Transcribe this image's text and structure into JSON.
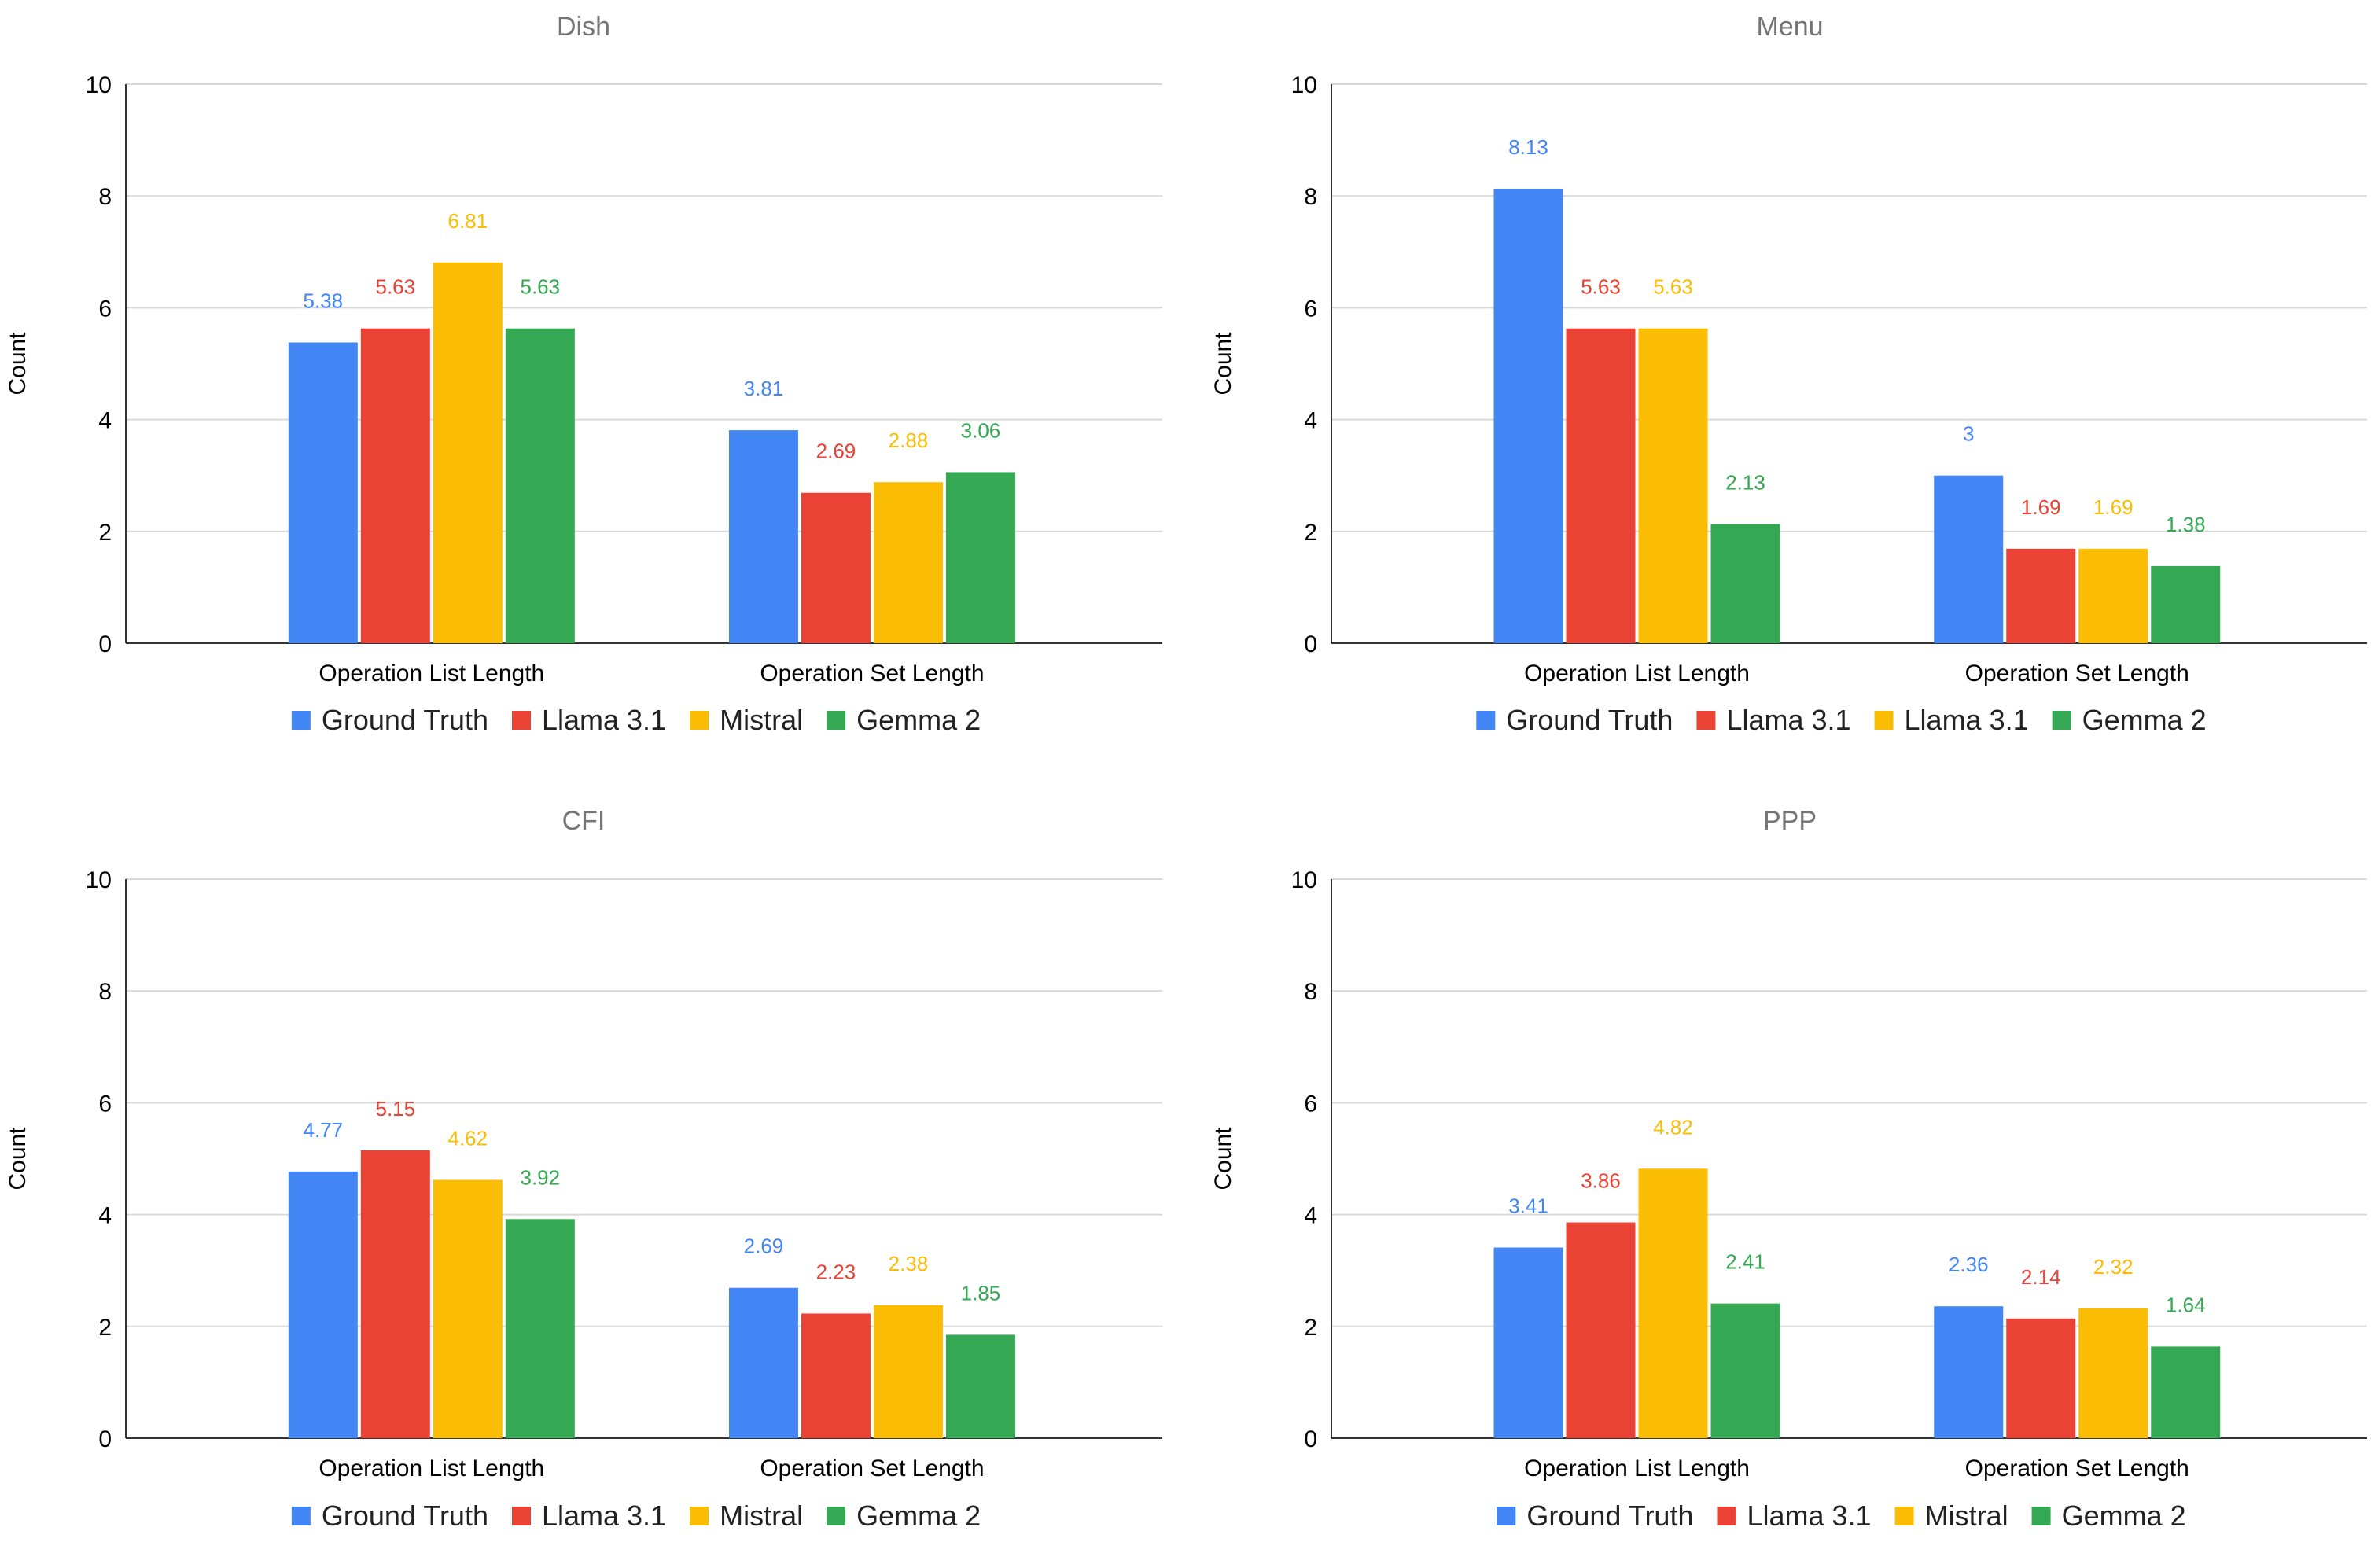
{
  "colors": [
    "#4285f4",
    "#ea4335",
    "#fbbc04",
    "#34a853"
  ],
  "chart_data": [
    {
      "type": "bar",
      "title": "Dish",
      "categories": [
        "Operation List Length",
        "Operation Set Length"
      ],
      "ylabel": "Count",
      "xlabel": "",
      "ylim": [
        0,
        10
      ],
      "yticks": [
        0,
        2,
        4,
        6,
        8,
        10
      ],
      "grid": true,
      "legend": "bottom",
      "series": [
        {
          "name": "Ground Truth",
          "values": [
            5.38,
            3.81
          ],
          "labels": [
            "5.38",
            "3.81"
          ]
        },
        {
          "name": "Llama 3.1",
          "values": [
            5.63,
            2.69
          ],
          "labels": [
            "5.63",
            "2.69"
          ]
        },
        {
          "name": "Mistral",
          "values": [
            6.81,
            2.88
          ],
          "labels": [
            "6.81",
            "2.88"
          ]
        },
        {
          "name": "Gemma 2",
          "values": [
            5.63,
            3.06
          ],
          "labels": [
            "5.63",
            "3.06"
          ]
        }
      ]
    },
    {
      "type": "bar",
      "title": "Menu",
      "categories": [
        "Operation List Length",
        "Operation Set Length"
      ],
      "ylabel": "Count",
      "xlabel": "",
      "ylim": [
        0,
        10
      ],
      "yticks": [
        0,
        2,
        4,
        6,
        8,
        10
      ],
      "grid": true,
      "legend": "bottom",
      "series": [
        {
          "name": "Ground Truth",
          "values": [
            8.13,
            3
          ],
          "labels": [
            "8.13",
            "3"
          ]
        },
        {
          "name": "Llama 3.1",
          "values": [
            5.63,
            1.69
          ],
          "labels": [
            "5.63",
            "1.69"
          ]
        },
        {
          "name": "Llama 3.1",
          "values": [
            5.63,
            1.69
          ],
          "labels": [
            "5.63",
            "1.69"
          ]
        },
        {
          "name": "Gemma 2",
          "values": [
            2.13,
            1.38
          ],
          "labels": [
            "2.13",
            "1.38"
          ]
        }
      ]
    },
    {
      "type": "bar",
      "title": "CFI",
      "categories": [
        "Operation List Length",
        "Operation Set Length"
      ],
      "ylabel": "Count",
      "xlabel": "",
      "ylim": [
        0,
        10
      ],
      "yticks": [
        0,
        2,
        4,
        6,
        8,
        10
      ],
      "grid": true,
      "legend": "bottom",
      "series": [
        {
          "name": "Ground Truth",
          "values": [
            4.77,
            2.69
          ],
          "labels": [
            "4.77",
            "2.69"
          ]
        },
        {
          "name": "Llama 3.1",
          "values": [
            5.15,
            2.23
          ],
          "labels": [
            "5.15",
            "2.23"
          ]
        },
        {
          "name": "Mistral",
          "values": [
            4.62,
            2.38
          ],
          "labels": [
            "4.62",
            "2.38"
          ]
        },
        {
          "name": "Gemma 2",
          "values": [
            3.92,
            1.85
          ],
          "labels": [
            "3.92",
            "1.85"
          ]
        }
      ]
    },
    {
      "type": "bar",
      "title": "PPP",
      "categories": [
        "Operation List Length",
        "Operation Set Length"
      ],
      "ylabel": "Count",
      "xlabel": "",
      "ylim": [
        0,
        10
      ],
      "yticks": [
        0,
        2,
        4,
        6,
        8,
        10
      ],
      "grid": true,
      "legend": "bottom",
      "series": [
        {
          "name": "Ground Truth",
          "values": [
            3.41,
            2.36
          ],
          "labels": [
            "3.41",
            "2.36"
          ]
        },
        {
          "name": "Llama 3.1",
          "values": [
            3.86,
            2.14
          ],
          "labels": [
            "3.86",
            "2.14"
          ]
        },
        {
          "name": "Mistral",
          "values": [
            4.82,
            2.32
          ],
          "labels": [
            "4.82",
            "2.32"
          ]
        },
        {
          "name": "Gemma 2",
          "values": [
            2.41,
            1.64
          ],
          "labels": [
            "2.41",
            "1.64"
          ]
        }
      ]
    }
  ]
}
